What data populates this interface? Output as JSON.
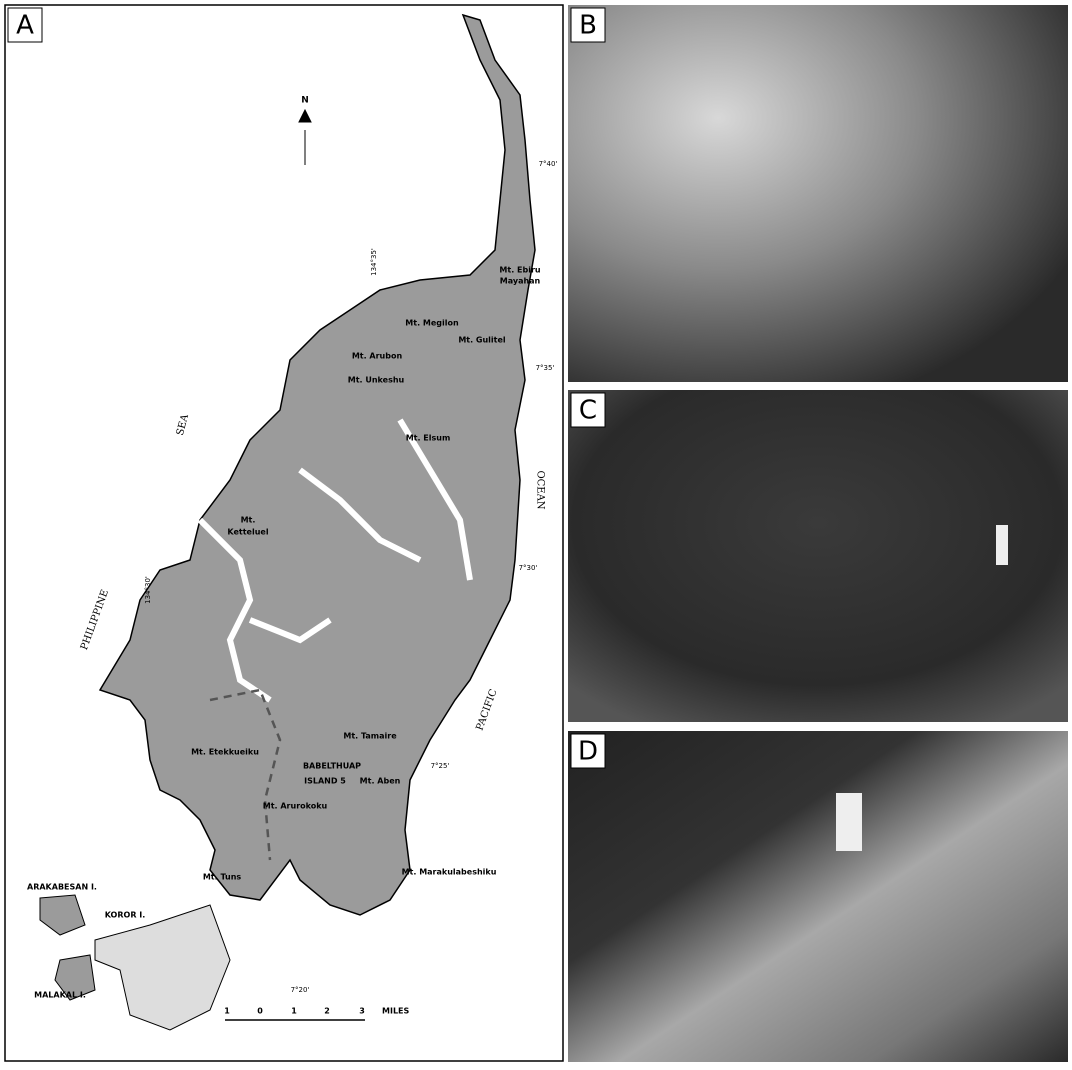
{
  "panels": {
    "a": "A",
    "b": "B",
    "c": "C",
    "d": "D"
  },
  "map": {
    "north": "N",
    "places": [
      "Mt. Megilon",
      "Mt. Gulitel",
      "Mt. Ebiru",
      "Mayahan",
      "Mt. Arubon",
      "Mt. Unkeshu",
      "Mt. Elsum",
      "Mt.",
      "Ketteluel",
      "Mt. Etekkueiku",
      "Mt. Tamaire",
      "BABELTHUAP",
      "ISLAND 5",
      "Mt. Aben",
      "Mt. Arurokoku",
      "Mt. Marakulabeshiku",
      "Mt. Tuns",
      "ARAKABESAN I.",
      "KOROR I.",
      "MALAKAL I."
    ],
    "seas": [
      "SEA",
      "PHILIPPINE",
      "PACIFIC",
      "OCEAN"
    ],
    "coords": [
      "7°40'",
      "7°35'",
      "7°30'",
      "7°25'",
      "7°20'",
      "134°35'",
      "134°30'"
    ],
    "scale": [
      "1",
      "0",
      "1",
      "2",
      "3",
      "MILES"
    ]
  }
}
